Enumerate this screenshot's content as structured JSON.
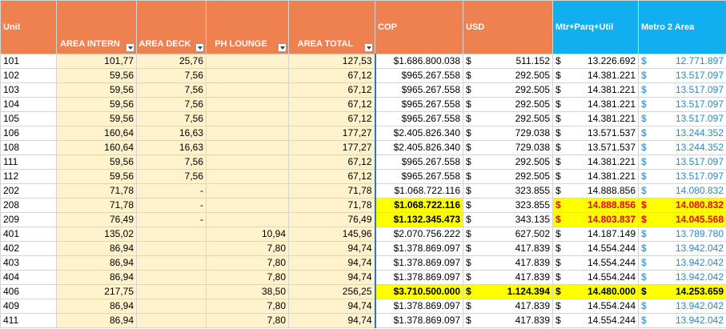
{
  "currency_symbol": "$",
  "table": {
    "header": [
      "Unit",
      "AREA INTERN",
      "AREA DECK",
      "PH LOUNGE",
      "AREA TOTAL",
      "COP",
      "USD",
      "Mtr+Parq+Util",
      "Metro 2 Area"
    ],
    "rows": [
      [
        "101",
        "101,77",
        "25,76",
        null,
        "127,53",
        "$1.686.800.038",
        "511.152",
        "13.226.692",
        "12.771.897"
      ],
      [
        "102",
        "59,56",
        "7,56",
        null,
        "67,12",
        "$965.267.558",
        "292.505",
        "14.381.221",
        "13.517.097"
      ],
      [
        "103",
        "59,56",
        "7,56",
        null,
        "67,12",
        "$965.267.558",
        "292.505",
        "14.381.221",
        "13.517.097"
      ],
      [
        "104",
        "59,56",
        "7,56",
        null,
        "67,12",
        "$965.267.558",
        "292.505",
        "14.381.221",
        "13.517.097"
      ],
      [
        "105",
        "59,56",
        "7,56",
        null,
        "67,12",
        "$965.267.558",
        "292.505",
        "14.381.221",
        "13.517.097"
      ],
      [
        "106",
        "160,64",
        "16,63",
        null,
        "177,27",
        "$2.405.826.340",
        "729.038",
        "13.571.537",
        "13.244.352"
      ],
      [
        "108",
        "160,64",
        "16,63",
        null,
        "177,27",
        "$2.405.826.340",
        "729.038",
        "13.571.537",
        "13.244.352"
      ],
      [
        "111",
        "59,56",
        "7,56",
        null,
        "67,12",
        "$965.267.558",
        "292.505",
        "14.381.221",
        "13.517.097"
      ],
      [
        "112",
        "59,56",
        "7,56",
        null,
        "67,12",
        "$965.267.558",
        "292.505",
        "14.381.221",
        "13.517.097"
      ],
      [
        "202",
        "71,78",
        "-",
        null,
        "71,78",
        "$1.068.722.116",
        "323.855",
        "14.888.856",
        "14.080.832"
      ],
      [
        "208",
        "71,78",
        "-",
        null,
        "71,78",
        "$1.068.722.116",
        "323.855",
        "14.888.856",
        "14.080.832"
      ],
      [
        "209",
        "76,49",
        "-",
        null,
        "76,49",
        "$1.132.345.473",
        "343.135",
        "14.803.837",
        "14.045.568"
      ],
      [
        "401",
        "135,02",
        null,
        "10,94",
        "145,96",
        "$2.070.756.222",
        "627.502",
        "14.187.149",
        "13.789.780"
      ],
      [
        "402",
        "86,94",
        null,
        "7,80",
        "94,74",
        "$1.378.869.097",
        "417.839",
        "14.554.244",
        "13.942.042"
      ],
      [
        "403",
        "86,94",
        null,
        "7,80",
        "94,74",
        "$1.378.869.097",
        "417.839",
        "14.554.244",
        "13.942.042"
      ],
      [
        "404",
        "86,94",
        null,
        "7,80",
        "94,74",
        "$1.378.869.097",
        "417.839",
        "14.554.244",
        "13.942.042"
      ],
      [
        "406",
        "217,75",
        null,
        "38,50",
        "256,25",
        "$3.710.500.000",
        "1.124.394",
        "14.480.000",
        "14.253.659"
      ],
      [
        "409",
        "86,94",
        null,
        "7,80",
        "94,74",
        "$1.378.869.097",
        "417.839",
        "14.554.244",
        "13.942.042"
      ],
      [
        "411",
        "86,94",
        null,
        "7,80",
        "94,74",
        "$1.378.869.097",
        "417.839",
        "14.554.244",
        "13.942.042"
      ]
    ]
  }
}
